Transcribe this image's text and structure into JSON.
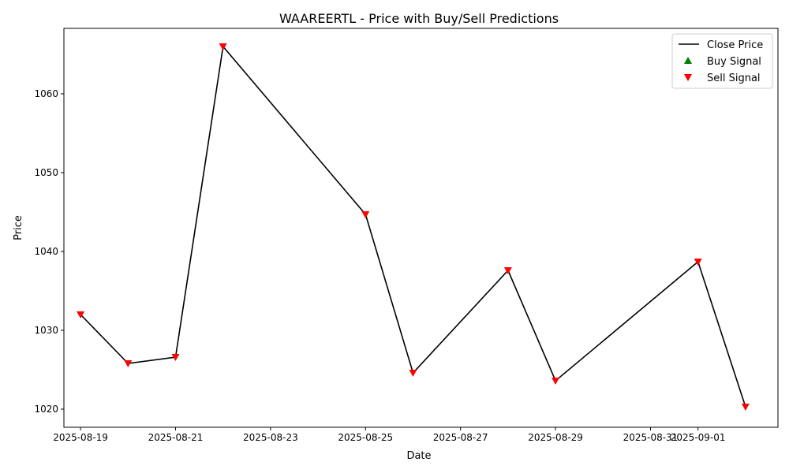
{
  "chart_data": {
    "type": "line",
    "title": "WAAREERTL - Price with Buy/Sell Predictions",
    "xlabel": "Date",
    "ylabel": "Price",
    "x_ticks": [
      "2025-08-19",
      "2025-08-21",
      "2025-08-23",
      "2025-08-25",
      "2025-08-27",
      "2025-08-29",
      "2025-08-31",
      "2025-09-01"
    ],
    "y_ticks": [
      1020,
      1030,
      1040,
      1050,
      1060
    ],
    "xlim": [
      "2025-08-18T15:36",
      "2025-09-02T16:24"
    ],
    "ylim": [
      1017.7,
      1068.3
    ],
    "grid": false,
    "legend_position": "top-right",
    "series": [
      {
        "name": "Close Price",
        "kind": "line",
        "color": "#000000",
        "x": [
          "2025-08-19",
          "2025-08-20",
          "2025-08-21",
          "2025-08-22",
          "2025-08-25",
          "2025-08-26",
          "2025-08-28",
          "2025-08-29",
          "2025-09-01",
          "2025-09-02"
        ],
        "values": [
          1032.0,
          1025.8,
          1026.6,
          1066.0,
          1044.7,
          1024.6,
          1037.6,
          1023.6,
          1038.7,
          1020.3
        ]
      },
      {
        "name": "Buy Signal",
        "kind": "marker-up",
        "color": "#008000",
        "x": [],
        "values": []
      },
      {
        "name": "Sell Signal",
        "kind": "marker-down",
        "color": "#ff0000",
        "x": [
          "2025-08-19",
          "2025-08-20",
          "2025-08-21",
          "2025-08-22",
          "2025-08-25",
          "2025-08-26",
          "2025-08-28",
          "2025-08-29",
          "2025-09-01",
          "2025-09-02"
        ],
        "values": [
          1032.0,
          1025.8,
          1026.6,
          1066.0,
          1044.7,
          1024.6,
          1037.6,
          1023.6,
          1038.7,
          1020.3
        ]
      }
    ]
  }
}
